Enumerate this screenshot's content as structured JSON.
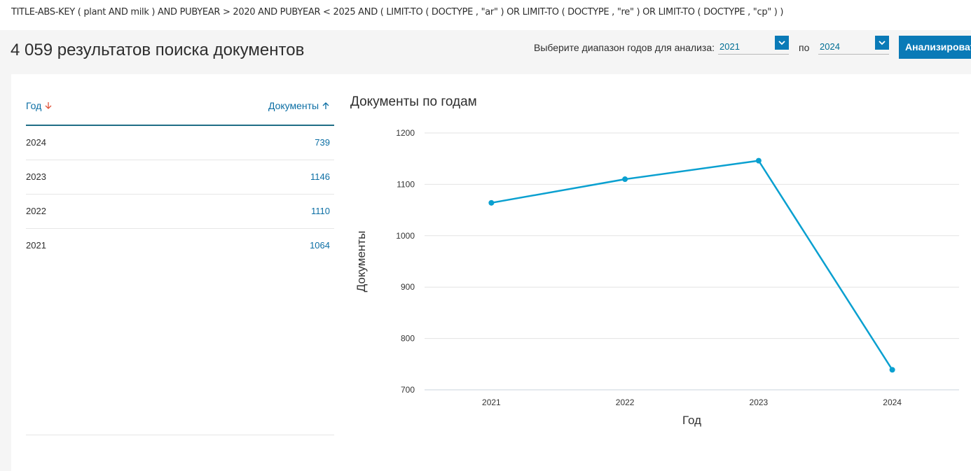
{
  "query": "TITLE-ABS-KEY ( plant  AND milk )  AND  PUBYEAR  >  2020  AND  PUBYEAR  <  2025  AND  ( LIMIT-TO ( DOCTYPE ,  \"ar\" )  OR  LIMIT-TO ( DOCTYPE ,  \"re\" )  OR  LIMIT-TO ( DOCTYPE ,  \"cp\" ) )",
  "results_title": "4 059 результатов поиска документов",
  "range": {
    "label": "Выберите диапазон годов для анализа:",
    "from": "2021",
    "to_label": "по",
    "to": "2024",
    "button": "Анализировать"
  },
  "table": {
    "col_year": "Год",
    "col_docs": "Документы",
    "rows": [
      {
        "year": "2024",
        "count": "739"
      },
      {
        "year": "2023",
        "count": "1146"
      },
      {
        "year": "2022",
        "count": "1110"
      },
      {
        "year": "2021",
        "count": "1064"
      }
    ]
  },
  "colors": {
    "accent": "#0a7ab7",
    "line": "#0aa0d0"
  },
  "chart_data": {
    "type": "line",
    "title": "Документы по годам",
    "xlabel": "Год",
    "ylabel": "Документы",
    "x": [
      "2021",
      "2022",
      "2023",
      "2024"
    ],
    "series": [
      {
        "values": [
          1064,
          1110,
          1146,
          739
        ]
      }
    ],
    "ylim": [
      700,
      1200
    ],
    "yticks": [
      700,
      800,
      900,
      1000,
      1100,
      1200
    ],
    "grid": true
  }
}
